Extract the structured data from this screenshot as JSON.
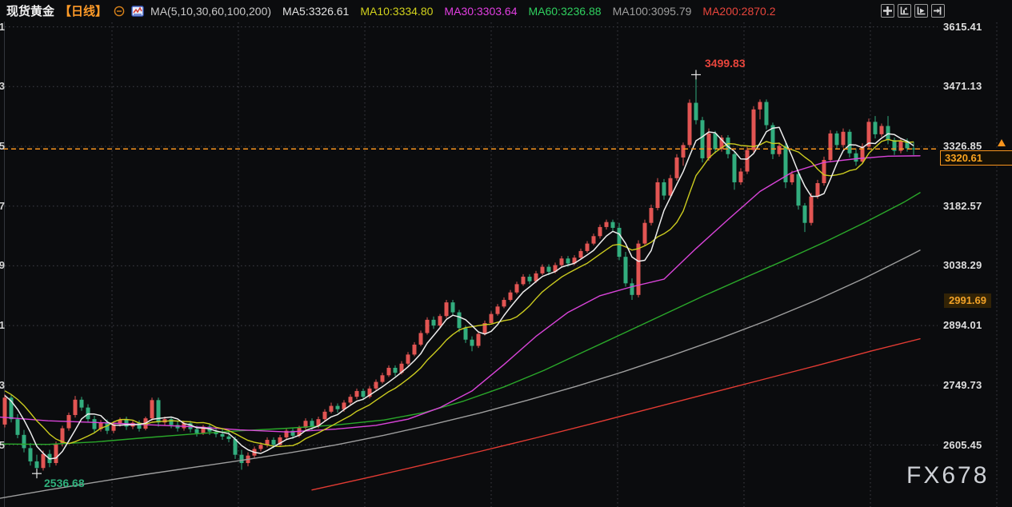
{
  "header": {
    "symbol": "现货黄金",
    "timeframe": "【日线】",
    "ma_settings_label": "MA(5,10,30,60,100,200)",
    "ma_values": [
      {
        "label": "MA5:3326.61",
        "color": "#e2e2e2"
      },
      {
        "label": "MA10:3334.80",
        "color": "#d2d21c"
      },
      {
        "label": "MA30:3303.64",
        "color": "#e23ee2"
      },
      {
        "label": "MA60:3236.88",
        "color": "#2fd05f"
      },
      {
        "label": "MA100:3095.79",
        "color": "#9e9e9e"
      },
      {
        "label": "MA200:2870.2",
        "color": "#e8453c"
      }
    ],
    "toolbar_icons": [
      "move-crosshair-icon",
      "axis-scale-icon",
      "axis-play-icon",
      "goto-latest-icon"
    ]
  },
  "axis": {
    "labels": [
      {
        "text": "3615.41",
        "price": 3615.41
      },
      {
        "text": "3471.13",
        "price": 3471.13
      },
      {
        "text": "3326.85",
        "price": 3326.85
      },
      {
        "text": "3182.57",
        "price": 3182.57
      },
      {
        "text": "3038.29",
        "price": 3038.29
      },
      {
        "text": "2894.01",
        "price": 2894.01
      },
      {
        "text": "2749.73",
        "price": 2749.73
      },
      {
        "text": "2605.45",
        "price": 2605.45
      }
    ],
    "current_price": {
      "text": "3320.61",
      "price": 3320.61
    },
    "alert_level": {
      "text": "2991.69",
      "price": 2991.69
    }
  },
  "annotations": {
    "high_label": "3499.83",
    "low_label": "2536.68"
  },
  "watermark": "FX678",
  "colors": {
    "background": "#0b0c0e",
    "up_candle": "#e25553",
    "down_candle": "#32ad7e",
    "accent_orange": "#f7941d",
    "ma5": "#ededed",
    "ma10": "#cbcb1f",
    "ma30": "#d944d9",
    "ma60": "#2aa82a",
    "ma100": "#9e9e9e",
    "ma200": "#e23b33",
    "grid": "#404048",
    "axis_line": "#33363c"
  },
  "chart_data": {
    "type": "candlestick",
    "title": "现货黄金 日线",
    "legend": [
      "MA5",
      "MA10",
      "MA30",
      "MA60",
      "MA100",
      "MA200"
    ],
    "ylim": [
      2455,
      3680
    ],
    "grid": "dotted",
    "visible_high": 3499.83,
    "visible_low": 2536.68,
    "last_price": 3320.61,
    "lead_in_closes": [
      2756,
      2750,
      2744,
      2748,
      2740,
      2736,
      2730,
      2726,
      2714
    ],
    "candles": [
      [
        2655,
        2728,
        2648,
        2720
      ],
      [
        2720,
        2726,
        2660,
        2668
      ],
      [
        2668,
        2680,
        2622,
        2630
      ],
      [
        2630,
        2642,
        2588,
        2598
      ],
      [
        2598,
        2610,
        2556,
        2566
      ],
      [
        2566,
        2582,
        2536.68,
        2550
      ],
      [
        2550,
        2592,
        2544,
        2584
      ],
      [
        2584,
        2594,
        2552,
        2562
      ],
      [
        2562,
        2614,
        2556,
        2608
      ],
      [
        2608,
        2652,
        2602,
        2646
      ],
      [
        2646,
        2684,
        2640,
        2678
      ],
      [
        2678,
        2724,
        2672,
        2715
      ],
      [
        2715,
        2722,
        2688,
        2696
      ],
      [
        2696,
        2704,
        2660,
        2668
      ],
      [
        2668,
        2676,
        2634,
        2644
      ],
      [
        2644,
        2666,
        2638,
        2660
      ],
      [
        2660,
        2667,
        2632,
        2640
      ],
      [
        2640,
        2662,
        2634,
        2656
      ],
      [
        2656,
        2672,
        2650,
        2667
      ],
      [
        2667,
        2674,
        2642,
        2650
      ],
      [
        2650,
        2664,
        2644,
        2659
      ],
      [
        2659,
        2665,
        2638,
        2645
      ],
      [
        2645,
        2674,
        2641,
        2670
      ],
      [
        2670,
        2720,
        2664,
        2714
      ],
      [
        2714,
        2720,
        2650,
        2660
      ],
      [
        2660,
        2674,
        2652,
        2668
      ],
      [
        2668,
        2674,
        2646,
        2654
      ],
      [
        2654,
        2662,
        2638,
        2646
      ],
      [
        2646,
        2664,
        2640,
        2658
      ],
      [
        2658,
        2664,
        2636,
        2644
      ],
      [
        2644,
        2652,
        2626,
        2634
      ],
      [
        2634,
        2654,
        2630,
        2650
      ],
      [
        2650,
        2656,
        2630,
        2638
      ],
      [
        2638,
        2650,
        2624,
        2632
      ],
      [
        2632,
        2644,
        2618,
        2626
      ],
      [
        2626,
        2638,
        2612,
        2620
      ],
      [
        2620,
        2626,
        2572,
        2582
      ],
      [
        2582,
        2594,
        2546,
        2562
      ],
      [
        2562,
        2588,
        2554,
        2580
      ],
      [
        2580,
        2602,
        2574,
        2596
      ],
      [
        2596,
        2612,
        2590,
        2606
      ],
      [
        2606,
        2624,
        2600,
        2618
      ],
      [
        2618,
        2624,
        2598,
        2606
      ],
      [
        2606,
        2630,
        2602,
        2624
      ],
      [
        2624,
        2646,
        2620,
        2640
      ],
      [
        2640,
        2646,
        2620,
        2628
      ],
      [
        2628,
        2652,
        2624,
        2647
      ],
      [
        2647,
        2670,
        2643,
        2664
      ],
      [
        2664,
        2670,
        2642,
        2650
      ],
      [
        2650,
        2674,
        2646,
        2668
      ],
      [
        2668,
        2692,
        2664,
        2686
      ],
      [
        2686,
        2708,
        2682,
        2700
      ],
      [
        2700,
        2706,
        2684,
        2692
      ],
      [
        2692,
        2714,
        2686,
        2708
      ],
      [
        2708,
        2728,
        2702,
        2722
      ],
      [
        2722,
        2742,
        2716,
        2736
      ],
      [
        2736,
        2742,
        2714,
        2722
      ],
      [
        2722,
        2748,
        2718,
        2742
      ],
      [
        2742,
        2764,
        2738,
        2758
      ],
      [
        2758,
        2780,
        2754,
        2774
      ],
      [
        2774,
        2798,
        2770,
        2792
      ],
      [
        2792,
        2798,
        2772,
        2780
      ],
      [
        2780,
        2808,
        2776,
        2802
      ],
      [
        2802,
        2830,
        2798,
        2824
      ],
      [
        2824,
        2854,
        2820,
        2848
      ],
      [
        2848,
        2882,
        2844,
        2876
      ],
      [
        2876,
        2914,
        2872,
        2908
      ],
      [
        2908,
        2916,
        2886,
        2894
      ],
      [
        2894,
        2922,
        2890,
        2917
      ],
      [
        2917,
        2956,
        2912,
        2950
      ],
      [
        2950,
        2956,
        2918,
        2926
      ],
      [
        2926,
        2932,
        2878,
        2888
      ],
      [
        2888,
        2894,
        2852,
        2860
      ],
      [
        2860,
        2868,
        2832,
        2845
      ],
      [
        2845,
        2880,
        2840,
        2874
      ],
      [
        2874,
        2906,
        2870,
        2900
      ],
      [
        2900,
        2928,
        2896,
        2922
      ],
      [
        2922,
        2946,
        2918,
        2940
      ],
      [
        2940,
        2962,
        2936,
        2956
      ],
      [
        2956,
        2980,
        2952,
        2974
      ],
      [
        2974,
        3000,
        2970,
        2994
      ],
      [
        2994,
        3018,
        2990,
        3012
      ],
      [
        3012,
        3018,
        2994,
        3001
      ],
      [
        3001,
        3026,
        2997,
        3020
      ],
      [
        3020,
        3042,
        3016,
        3036
      ],
      [
        3036,
        3042,
        3016,
        3024
      ],
      [
        3024,
        3046,
        3020,
        3040
      ],
      [
        3040,
        3062,
        3036,
        3056
      ],
      [
        3056,
        3062,
        3036,
        3044
      ],
      [
        3044,
        3064,
        3040,
        3058
      ],
      [
        3058,
        3080,
        3054,
        3074
      ],
      [
        3074,
        3098,
        3070,
        3092
      ],
      [
        3092,
        3116,
        3088,
        3110
      ],
      [
        3110,
        3138,
        3104,
        3132
      ],
      [
        3132,
        3150,
        3126,
        3144
      ],
      [
        3144,
        3150,
        3122,
        3130
      ],
      [
        3130,
        3142,
        3052,
        3060
      ],
      [
        3060,
        3072,
        2988,
        2996
      ],
      [
        2996,
        3008,
        2956,
        2968
      ],
      [
        2968,
        3100,
        2962,
        3092
      ],
      [
        3092,
        3150,
        3086,
        3142
      ],
      [
        3142,
        3186,
        3136,
        3178
      ],
      [
        3178,
        3250,
        3172,
        3240
      ],
      [
        3240,
        3248,
        3198,
        3208
      ],
      [
        3208,
        3258,
        3202,
        3250
      ],
      [
        3250,
        3308,
        3244,
        3300
      ],
      [
        3300,
        3336,
        3280,
        3330
      ],
      [
        3330,
        3440,
        3324,
        3432
      ],
      [
        3432,
        3499.83,
        3380,
        3390
      ],
      [
        3390,
        3398,
        3288,
        3298
      ],
      [
        3298,
        3370,
        3292,
        3358
      ],
      [
        3358,
        3364,
        3310,
        3320
      ],
      [
        3320,
        3354,
        3314,
        3348
      ],
      [
        3348,
        3354,
        3298,
        3308
      ],
      [
        3308,
        3314,
        3222,
        3240
      ],
      [
        3240,
        3274,
        3234,
        3266
      ],
      [
        3266,
        3326,
        3260,
        3318
      ],
      [
        3318,
        3424,
        3312,
        3416
      ],
      [
        3416,
        3440,
        3392,
        3434
      ],
      [
        3434,
        3440,
        3368,
        3378
      ],
      [
        3378,
        3384,
        3296,
        3308
      ],
      [
        3308,
        3336,
        3302,
        3328
      ],
      [
        3328,
        3334,
        3226,
        3240
      ],
      [
        3240,
        3268,
        3234,
        3260
      ],
      [
        3260,
        3266,
        3174,
        3184
      ],
      [
        3184,
        3190,
        3120,
        3142
      ],
      [
        3142,
        3214,
        3136,
        3206
      ],
      [
        3206,
        3246,
        3200,
        3238
      ],
      [
        3238,
        3302,
        3232,
        3294
      ],
      [
        3294,
        3366,
        3288,
        3358
      ],
      [
        3358,
        3364,
        3322,
        3330
      ],
      [
        3330,
        3370,
        3324,
        3362
      ],
      [
        3362,
        3368,
        3300,
        3310
      ],
      [
        3310,
        3322,
        3280,
        3290
      ],
      [
        3290,
        3334,
        3284,
        3326
      ],
      [
        3326,
        3394,
        3320,
        3386
      ],
      [
        3386,
        3400,
        3346,
        3356
      ],
      [
        3356,
        3382,
        3350,
        3376
      ],
      [
        3376,
        3400,
        3332,
        3342
      ],
      [
        3342,
        3348,
        3306,
        3316
      ],
      [
        3316,
        3346,
        3310,
        3340
      ],
      [
        3340,
        3346,
        3314,
        3322
      ],
      [
        3322,
        3338,
        3306,
        3320.61
      ]
    ],
    "ma_anchor_lines": {
      "ma30": [
        [
          0,
          2673
        ],
        [
          60,
          2664
        ],
        [
          120,
          2660
        ],
        [
          180,
          2655
        ],
        [
          240,
          2650
        ],
        [
          300,
          2642
        ],
        [
          360,
          2637
        ],
        [
          420,
          2644
        ],
        [
          470,
          2653
        ],
        [
          510,
          2668
        ],
        [
          550,
          2696
        ],
        [
          590,
          2736
        ],
        [
          630,
          2800
        ],
        [
          670,
          2868
        ],
        [
          710,
          2926
        ],
        [
          750,
          2966
        ],
        [
          790,
          2988
        ],
        [
          830,
          3006
        ],
        [
          870,
          3080
        ],
        [
          910,
          3150
        ],
        [
          950,
          3218
        ],
        [
          990,
          3264
        ],
        [
          1030,
          3288
        ],
        [
          1070,
          3297
        ],
        [
          1110,
          3303
        ],
        [
          1150,
          3304
        ]
      ],
      "ma60": [
        [
          0,
          2608
        ],
        [
          60,
          2607
        ],
        [
          120,
          2613
        ],
        [
          180,
          2623
        ],
        [
          240,
          2632
        ],
        [
          300,
          2640
        ],
        [
          360,
          2646
        ],
        [
          420,
          2654
        ],
        [
          480,
          2666
        ],
        [
          530,
          2684
        ],
        [
          580,
          2712
        ],
        [
          630,
          2746
        ],
        [
          680,
          2786
        ],
        [
          730,
          2831
        ],
        [
          780,
          2876
        ],
        [
          830,
          2921
        ],
        [
          880,
          2966
        ],
        [
          930,
          3009
        ],
        [
          980,
          3051
        ],
        [
          1030,
          3095
        ],
        [
          1080,
          3142
        ],
        [
          1130,
          3192
        ],
        [
          1150,
          3215
        ]
      ],
      "ma100": [
        [
          0,
          2477
        ],
        [
          60,
          2497
        ],
        [
          120,
          2516
        ],
        [
          180,
          2534
        ],
        [
          240,
          2551
        ],
        [
          300,
          2568
        ],
        [
          360,
          2586
        ],
        [
          420,
          2606
        ],
        [
          480,
          2629
        ],
        [
          540,
          2655
        ],
        [
          600,
          2683
        ],
        [
          660,
          2714
        ],
        [
          720,
          2747
        ],
        [
          780,
          2783
        ],
        [
          840,
          2822
        ],
        [
          900,
          2863
        ],
        [
          960,
          2907
        ],
        [
          1020,
          2955
        ],
        [
          1080,
          3008
        ],
        [
          1140,
          3066
        ],
        [
          1150,
          3076
        ]
      ],
      "ma200": [
        [
          390,
          2497
        ],
        [
          460,
          2527
        ],
        [
          530,
          2558
        ],
        [
          600,
          2590
        ],
        [
          670,
          2623
        ],
        [
          740,
          2657
        ],
        [
          810,
          2692
        ],
        [
          880,
          2727
        ],
        [
          950,
          2762
        ],
        [
          1020,
          2797
        ],
        [
          1090,
          2833
        ],
        [
          1150,
          2862
        ]
      ]
    }
  }
}
